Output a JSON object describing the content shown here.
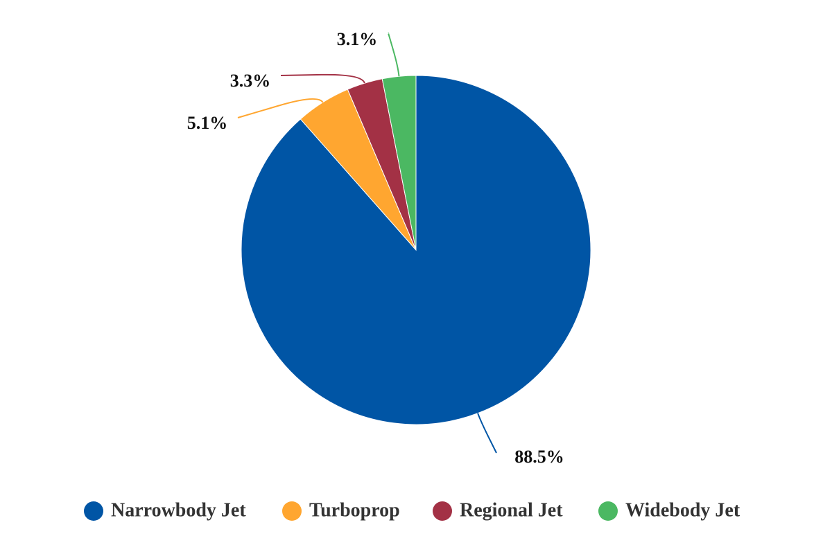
{
  "chart_data": {
    "type": "pie",
    "start_angle_deg": 0,
    "direction": "clockwise",
    "legend_position": "bottom",
    "slices": [
      {
        "name": "Narrowbody Jet",
        "value": 88.5,
        "label": "88.5%",
        "color": "#0055A5"
      },
      {
        "name": "Turboprop",
        "value": 5.1,
        "label": "5.1%",
        "color": "#FFA630"
      },
      {
        "name": "Regional Jet",
        "value": 3.3,
        "label": "3.3%",
        "color": "#A33145"
      },
      {
        "name": "Widebody Jet",
        "value": 3.1,
        "label": "3.1%",
        "color": "#4BB862"
      }
    ]
  }
}
